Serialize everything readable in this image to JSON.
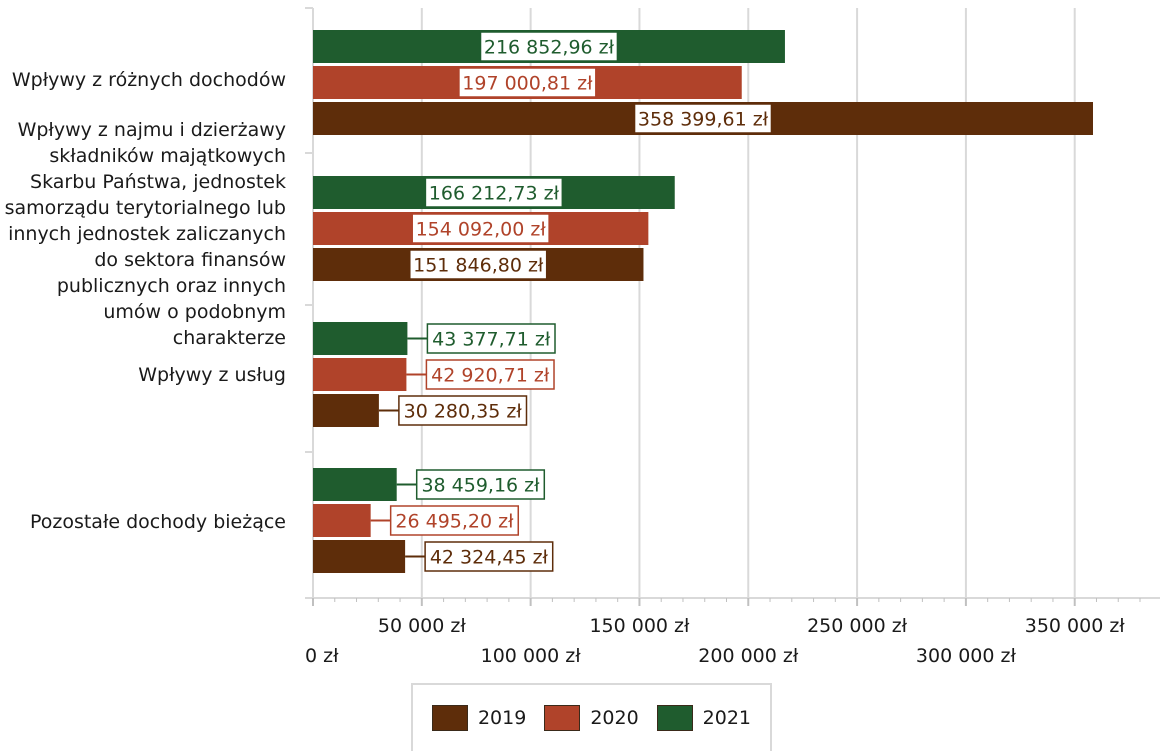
{
  "chart_data": {
    "type": "bar",
    "orientation": "horizontal",
    "categories": [
      "Wpływy z różnych dochodów",
      "Wpływy z najmu i dzierżawy\nskładników majątkowych\nSkarbu Państwa, jednostek\nsamorządu terytorialnego lub\ninnych jednostek zaliczanych\ndo sektora finansów\npublicznych oraz innych\numów o podobnym\ncharakterze",
      "Wpływy z usług",
      "Pozostałe dochody bieżące"
    ],
    "series": [
      {
        "name": "2021",
        "color": "#1f5c2e",
        "values": [
          216852.96,
          166212.73,
          43377.71,
          38459.16
        ],
        "labels": [
          "216 852,96 zł",
          "166 212,73 zł",
          "43 377,71 zł",
          "38 459,16 zł"
        ]
      },
      {
        "name": "2020",
        "color": "#b0432a",
        "values": [
          197000.81,
          154092.0,
          42920.71,
          26495.2
        ],
        "labels": [
          "197 000,81 zł",
          "154 092,00 zł",
          "42 920,71 zł",
          "26 495,20 zł"
        ]
      },
      {
        "name": "2019",
        "color": "#5e2d0a",
        "values": [
          358399.61,
          151846.8,
          30280.35,
          42324.45
        ],
        "labels": [
          "358 399,61 zł",
          "151 846,80 zł",
          "30 280,35 zł",
          "42 324,45 zł"
        ]
      }
    ],
    "xlim": [
      0,
      385000
    ],
    "xticks": [
      0,
      50000,
      100000,
      150000,
      200000,
      250000,
      300000,
      350000
    ],
    "xtick_labels": [
      "0 zł",
      "50 000 zł",
      "100 000 zł",
      "150 000 zł",
      "200 000 zł",
      "250 000 zł",
      "300 000 zł",
      "350 000 zł"
    ],
    "legend": [
      "2019",
      "2020",
      "2021"
    ],
    "legend_position": "bottom",
    "grid": true,
    "title": "",
    "xlabel": "",
    "ylabel": ""
  }
}
